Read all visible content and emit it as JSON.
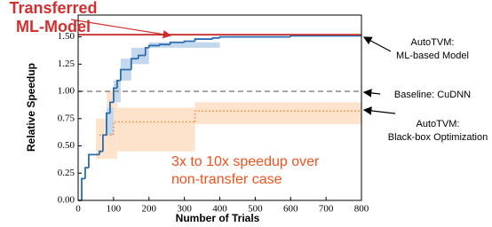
{
  "chart_data": {
    "type": "step",
    "xlabel": "Number of Trials",
    "ylabel": "Relative Speedup",
    "xlim": [
      0,
      800
    ],
    "xticks": [
      0,
      100,
      200,
      300,
      400,
      500,
      600,
      700,
      800
    ],
    "ylim": [
      0,
      1.7
    ],
    "yticks": [
      {
        "value": 0,
        "label": "0.00"
      },
      {
        "value": 0.25,
        "label": "0.25"
      },
      {
        "value": 0.5,
        "label": "0.50"
      },
      {
        "value": 0.75,
        "label": "0.75"
      },
      {
        "value": 1.0,
        "label": "1.00"
      },
      {
        "value": 1.25,
        "label": "1.25"
      },
      {
        "value": 1.5,
        "label": "1.50"
      }
    ],
    "bands": [
      {
        "color": "#fde3cc",
        "x": [
          50,
          80,
          110,
          330,
          800
        ],
        "lower": [
          0.38,
          0.38,
          0.45,
          0.7,
          0.7
        ],
        "upper": [
          0.75,
          1.0,
          0.85,
          0.9,
          0.9
        ]
      },
      {
        "color": "#c3d8ec",
        "x": [
          80,
          100,
          120,
          150,
          200,
          400
        ],
        "lower": [
          0.6,
          0.9,
          1.1,
          1.25,
          1.4,
          1.49
        ],
        "upper": [
          0.85,
          1.1,
          1.3,
          1.4,
          1.45,
          1.51
        ]
      }
    ],
    "series": [
      {
        "color": "#f0883a",
        "style": "dotted",
        "x": [
          60,
          100,
          330,
          800
        ],
        "values": [
          0.6,
          0.72,
          0.82,
          0.82
        ]
      },
      {
        "color": "#888888",
        "style": "dashed",
        "x": [
          0,
          800
        ],
        "values": [
          1.0,
          1.0
        ]
      },
      {
        "color": "#2b6cb0",
        "style": "solid",
        "x": [
          0,
          10,
          20,
          30,
          50,
          60,
          70,
          80,
          90,
          100,
          110,
          120,
          150,
          170,
          190,
          200,
          230,
          260,
          300,
          330,
          380,
          400,
          450,
          600,
          800
        ],
        "values": [
          0,
          0.2,
          0.3,
          0.42,
          0.42,
          0.45,
          0.6,
          0.8,
          0.9,
          1.03,
          1.1,
          1.2,
          1.3,
          1.33,
          1.4,
          1.42,
          1.43,
          1.45,
          1.46,
          1.48,
          1.49,
          1.5,
          1.5,
          1.51,
          1.51
        ]
      },
      {
        "color": "#c62828",
        "style": "solid",
        "x": [
          0,
          800
        ],
        "values": [
          1.52,
          1.52
        ]
      }
    ],
    "annotations": [
      {
        "lines": [
          "Transferred",
          "ML-Model"
        ],
        "color": "#d32f2f"
      },
      {
        "lines": [
          "AutoTVM:",
          "ML-based Model"
        ],
        "color": "#000000"
      },
      {
        "lines": [
          "Baseline: CuDNN"
        ],
        "color": "#000000"
      },
      {
        "lines": [
          "AutoTVM:",
          "Black-box Optimization"
        ],
        "color": "#000000"
      },
      {
        "lines": [
          "3x to 10x speedup over",
          "non-transfer case"
        ],
        "color": "#f4511e"
      }
    ]
  }
}
